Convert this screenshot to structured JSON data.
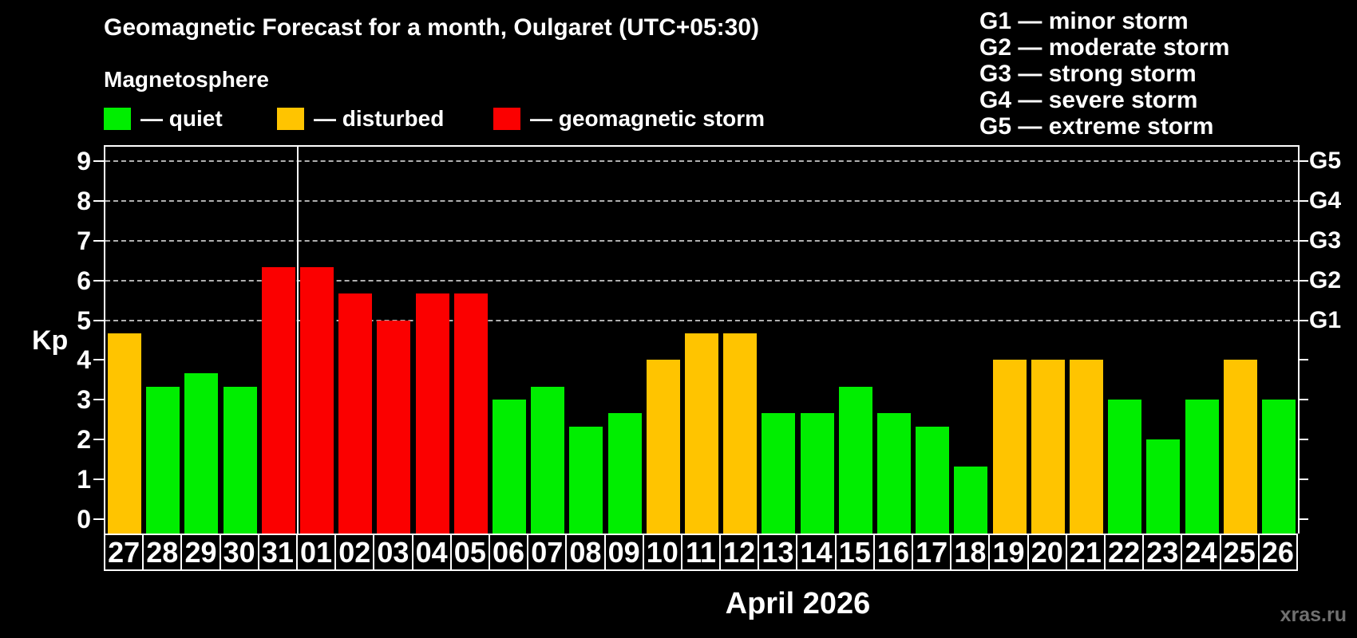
{
  "title": "Geomagnetic Forecast for a month, Oulgaret (UTC+05:30)",
  "subtitle": "Magnetosphere",
  "legend": [
    {
      "key": "quiet",
      "label": "— quiet"
    },
    {
      "key": "disturbed",
      "label": "— disturbed"
    },
    {
      "key": "storm",
      "label": "— geomagnetic storm"
    }
  ],
  "storm_scale": [
    "G1 — minor storm",
    "G2 — moderate storm",
    "G3 — strong storm",
    "G4 — severe storm",
    "G5 — extreme storm"
  ],
  "colors": {
    "quiet": "#00ee00",
    "disturbed": "#ffc400",
    "storm": "#fb0000",
    "background": "#000000",
    "text": "#ffffff",
    "grid": "#b0b0b0",
    "watermark": "#707070"
  },
  "axis": {
    "y_label": "Kp",
    "y_ticks": [
      0,
      1,
      2,
      3,
      4,
      5,
      6,
      7,
      8,
      9
    ],
    "x_label": "April 2026"
  },
  "watermark": "xras.ru",
  "chart_data": {
    "type": "bar",
    "title": "Geomagnetic Forecast for a month, Oulgaret (UTC+05:30)",
    "xlabel": "April 2026",
    "ylabel": "Kp",
    "ylim": [
      0,
      9
    ],
    "yticks": [
      0,
      1,
      2,
      3,
      4,
      5,
      6,
      7,
      8,
      9
    ],
    "grid": "dashed horizontal lines at Kp 5 through 9 only",
    "legend_position": "top-left",
    "categories": [
      "27",
      "28",
      "29",
      "30",
      "31",
      "01",
      "02",
      "03",
      "04",
      "05",
      "06",
      "07",
      "08",
      "09",
      "10",
      "11",
      "12",
      "13",
      "14",
      "15",
      "16",
      "17",
      "18",
      "19",
      "20",
      "21",
      "22",
      "23",
      "24",
      "25",
      "26"
    ],
    "values": [
      4.67,
      3.33,
      3.67,
      3.33,
      6.33,
      6.33,
      5.67,
      5.0,
      5.67,
      5.67,
      3.0,
      3.33,
      2.33,
      2.67,
      4.0,
      4.67,
      4.67,
      2.67,
      2.67,
      3.33,
      2.67,
      2.33,
      1.33,
      4.0,
      4.0,
      4.0,
      3.0,
      2.0,
      3.0,
      4.0,
      3.0
    ],
    "statuses": [
      "disturbed",
      "quiet",
      "quiet",
      "quiet",
      "storm",
      "storm",
      "storm",
      "storm",
      "storm",
      "storm",
      "quiet",
      "quiet",
      "quiet",
      "quiet",
      "disturbed",
      "disturbed",
      "disturbed",
      "quiet",
      "quiet",
      "quiet",
      "quiet",
      "quiet",
      "quiet",
      "disturbed",
      "disturbed",
      "disturbed",
      "quiet",
      "quiet",
      "quiet",
      "disturbed",
      "quiet"
    ],
    "month_boundary_index": 5,
    "g_levels": [
      {
        "label": "G1",
        "kp": 5
      },
      {
        "label": "G2",
        "kp": 6
      },
      {
        "label": "G3",
        "kp": 7
      },
      {
        "label": "G4",
        "kp": 8
      },
      {
        "label": "G5",
        "kp": 9
      }
    ]
  }
}
